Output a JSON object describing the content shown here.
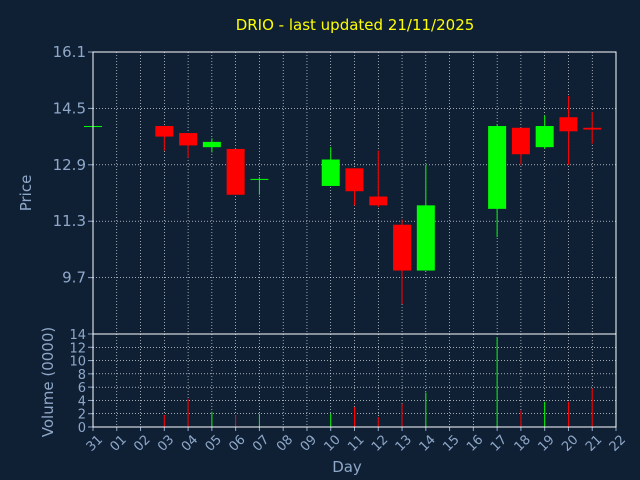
{
  "chart_data": {
    "type": "candlestick",
    "title": "DRIO - last updated 21/11/2025",
    "xlabel": "Day",
    "ylabel": "Price",
    "volume_label": "Volume (0000)",
    "x_tick_labels": [
      "31",
      "01",
      "02",
      "03",
      "04",
      "05",
      "06",
      "07",
      "08",
      "09",
      "10",
      "11",
      "12",
      "13",
      "14",
      "15",
      "16",
      "17",
      "18",
      "19",
      "20",
      "21",
      "22"
    ],
    "price_ticks": [
      "16.1",
      "14.5",
      "12.9",
      "11.3",
      "9.7"
    ],
    "price_ylim": [
      8.1,
      16.1
    ],
    "volume_ticks": [
      "14",
      "12",
      "10",
      "8",
      "6",
      "4",
      "2",
      "0"
    ],
    "volume_ylim": [
      0,
      14
    ],
    "colors": {
      "up": "#00ff00",
      "down": "#ff0000",
      "grid": "#ffffff",
      "axis_text": "#8fa8c8",
      "title": "#ffff00"
    },
    "candles": [
      {
        "day": "31",
        "open": 14.0,
        "high": 14.0,
        "low": 14.0,
        "close": 14.0,
        "volume": 0.0
      },
      {
        "day": "03",
        "open": 14.0,
        "high": 14.0,
        "low": 13.3,
        "close": 13.7,
        "volume": 1.8
      },
      {
        "day": "04",
        "open": 13.8,
        "high": 13.8,
        "low": 13.1,
        "close": 13.45,
        "volume": 4.2
      },
      {
        "day": "05",
        "open": 13.4,
        "high": 13.65,
        "low": 13.25,
        "close": 13.55,
        "volume": 2.3
      },
      {
        "day": "06",
        "open": 13.35,
        "high": 13.35,
        "low": 12.05,
        "close": 12.05,
        "volume": 1.8
      },
      {
        "day": "07",
        "open": 12.5,
        "high": 12.55,
        "low": 12.05,
        "close": 12.5,
        "volume": 2.0
      },
      {
        "day": "10",
        "open": 12.3,
        "high": 13.4,
        "low": 12.3,
        "close": 13.05,
        "volume": 2.0
      },
      {
        "day": "11",
        "open": 12.8,
        "high": 12.8,
        "low": 11.75,
        "close": 12.15,
        "volume": 3.0
      },
      {
        "day": "12",
        "open": 12.0,
        "high": 13.3,
        "low": 11.7,
        "close": 11.75,
        "volume": 1.5
      },
      {
        "day": "13",
        "open": 11.2,
        "high": 11.35,
        "low": 8.95,
        "close": 9.9,
        "volume": 3.5
      },
      {
        "day": "14",
        "open": 9.9,
        "high": 12.9,
        "low": 9.9,
        "close": 11.75,
        "volume": 5.2
      },
      {
        "day": "17",
        "open": 11.65,
        "high": 14.05,
        "low": 10.85,
        "close": 14.0,
        "volume": 13.5
      },
      {
        "day": "18",
        "open": 13.95,
        "high": 13.95,
        "low": 12.9,
        "close": 13.2,
        "volume": 2.5
      },
      {
        "day": "19",
        "open": 13.4,
        "high": 14.3,
        "low": 13.35,
        "close": 14.0,
        "volume": 3.8
      },
      {
        "day": "20",
        "open": 14.25,
        "high": 14.85,
        "low": 12.9,
        "close": 13.85,
        "volume": 3.8
      },
      {
        "day": "21",
        "open": 13.95,
        "high": 14.4,
        "low": 13.5,
        "close": 13.9,
        "volume": 5.8
      }
    ]
  }
}
